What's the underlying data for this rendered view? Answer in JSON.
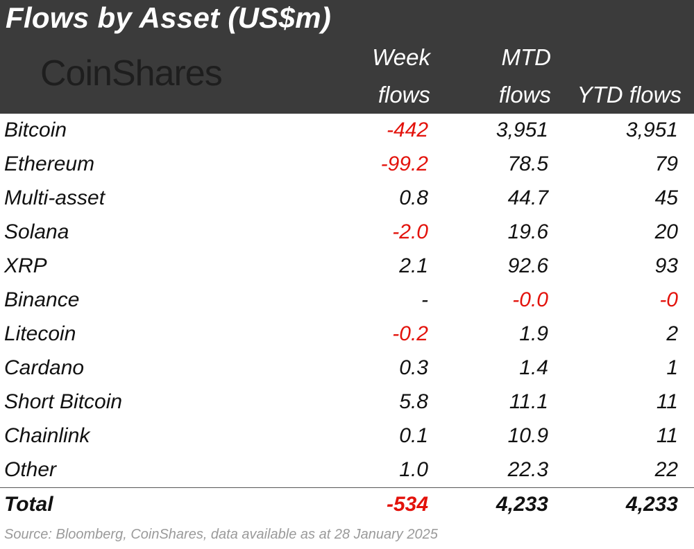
{
  "title": "Flows by Asset (US$m)",
  "logo": "CoinShares",
  "columns": {
    "week": [
      "Week",
      "flows"
    ],
    "mtd": [
      "MTD",
      "flows"
    ],
    "ytd": [
      "",
      "YTD flows"
    ]
  },
  "colors": {
    "header_bg": "#3b3b3b",
    "negative": "#e3120b"
  },
  "rows": [
    {
      "asset": "Bitcoin",
      "week": "-442",
      "mtd": "3,951",
      "ytd": "3,951",
      "week_neg": true,
      "mtd_neg": false,
      "ytd_neg": false
    },
    {
      "asset": "Ethereum",
      "week": "-99.2",
      "mtd": "78.5",
      "ytd": "79",
      "week_neg": true,
      "mtd_neg": false,
      "ytd_neg": false
    },
    {
      "asset": "Multi-asset",
      "week": "0.8",
      "mtd": "44.7",
      "ytd": "45",
      "week_neg": false,
      "mtd_neg": false,
      "ytd_neg": false
    },
    {
      "asset": "Solana",
      "week": "-2.0",
      "mtd": "19.6",
      "ytd": "20",
      "week_neg": true,
      "mtd_neg": false,
      "ytd_neg": false
    },
    {
      "asset": "XRP",
      "week": "2.1",
      "mtd": "92.6",
      "ytd": "93",
      "week_neg": false,
      "mtd_neg": false,
      "ytd_neg": false
    },
    {
      "asset": "Binance",
      "week": "-",
      "mtd": "-0.0",
      "ytd": "-0",
      "week_neg": false,
      "mtd_neg": true,
      "ytd_neg": true
    },
    {
      "asset": "Litecoin",
      "week": "-0.2",
      "mtd": "1.9",
      "ytd": "2",
      "week_neg": true,
      "mtd_neg": false,
      "ytd_neg": false
    },
    {
      "asset": "Cardano",
      "week": "0.3",
      "mtd": "1.4",
      "ytd": "1",
      "week_neg": false,
      "mtd_neg": false,
      "ytd_neg": false
    },
    {
      "asset": "Short Bitcoin",
      "week": "5.8",
      "mtd": "11.1",
      "ytd": "11",
      "week_neg": false,
      "mtd_neg": false,
      "ytd_neg": false
    },
    {
      "asset": "Chainlink",
      "week": "0.1",
      "mtd": "10.9",
      "ytd": "11",
      "week_neg": false,
      "mtd_neg": false,
      "ytd_neg": false
    },
    {
      "asset": "Other",
      "week": "1.0",
      "mtd": "22.3",
      "ytd": "22",
      "week_neg": false,
      "mtd_neg": false,
      "ytd_neg": false
    }
  ],
  "total": {
    "asset": "Total",
    "week": "-534",
    "mtd": "4,233",
    "ytd": "4,233",
    "week_neg": true,
    "mtd_neg": false,
    "ytd_neg": false
  },
  "source": "Source: Bloomberg, CoinShares, data available as at 28 January 2025",
  "chart_data": {
    "type": "table",
    "title": "Flows by Asset (US$m)",
    "columns": [
      "Week flows",
      "MTD flows",
      "YTD flows"
    ],
    "rows": [
      {
        "asset": "Bitcoin",
        "week_flows": -442,
        "mtd_flows": 3951,
        "ytd_flows": 3951
      },
      {
        "asset": "Ethereum",
        "week_flows": -99.2,
        "mtd_flows": 78.5,
        "ytd_flows": 79
      },
      {
        "asset": "Multi-asset",
        "week_flows": 0.8,
        "mtd_flows": 44.7,
        "ytd_flows": 45
      },
      {
        "asset": "Solana",
        "week_flows": -2.0,
        "mtd_flows": 19.6,
        "ytd_flows": 20
      },
      {
        "asset": "XRP",
        "week_flows": 2.1,
        "mtd_flows": 92.6,
        "ytd_flows": 93
      },
      {
        "asset": "Binance",
        "week_flows": null,
        "mtd_flows": -0.0,
        "ytd_flows": 0
      },
      {
        "asset": "Litecoin",
        "week_flows": -0.2,
        "mtd_flows": 1.9,
        "ytd_flows": 2
      },
      {
        "asset": "Cardano",
        "week_flows": 0.3,
        "mtd_flows": 1.4,
        "ytd_flows": 1
      },
      {
        "asset": "Short Bitcoin",
        "week_flows": 5.8,
        "mtd_flows": 11.1,
        "ytd_flows": 11
      },
      {
        "asset": "Chainlink",
        "week_flows": 0.1,
        "mtd_flows": 10.9,
        "ytd_flows": 11
      },
      {
        "asset": "Other",
        "week_flows": 1.0,
        "mtd_flows": 22.3,
        "ytd_flows": 22
      }
    ],
    "total": {
      "asset": "Total",
      "week_flows": -534,
      "mtd_flows": 4233,
      "ytd_flows": 4233
    }
  }
}
